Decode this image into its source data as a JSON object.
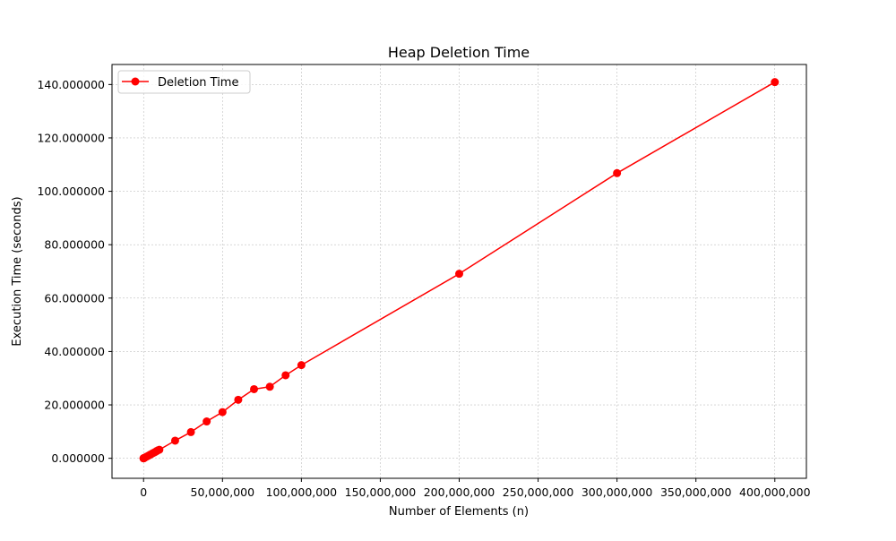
{
  "chart_data": {
    "type": "line",
    "title": "Heap Deletion Time",
    "xlabel": "Number of Elements (n)",
    "ylabel": "Execution Time (seconds)",
    "xlim": [
      -20000000,
      420000000
    ],
    "ylim": [
      -7500000,
      147500000
    ],
    "x_ticks": [
      0,
      50000000,
      100000000,
      150000000,
      200000000,
      250000000,
      300000000,
      350000000,
      400000000
    ],
    "x_tick_labels": [
      "0",
      "50,000,000",
      "100,000,000",
      "150,000,000",
      "200,000,000",
      "250,000,000",
      "300,000,000",
      "350,000,000",
      "400,000,000"
    ],
    "y_ticks": [
      0,
      20000000,
      40000000,
      60000000,
      80000000,
      100000000,
      120000000,
      140000000
    ],
    "y_tick_labels": [
      "0.000000",
      "20.000000",
      "40.000000",
      "60.000000",
      "80.000000",
      "100.000000",
      "120.000000",
      "140.000000"
    ],
    "grid": true,
    "legend_position": "top-left",
    "series": [
      {
        "name": "Deletion Time",
        "color": "#ff0000",
        "marker": "circle",
        "x": [
          100,
          1000,
          10000,
          100000,
          500000,
          1000000,
          2000000,
          3000000,
          4000000,
          5000000,
          6000000,
          7000000,
          8000000,
          9000000,
          10000000,
          20000000,
          30000000,
          40000000,
          50000000,
          60000000,
          70000000,
          80000000,
          90000000,
          100000000,
          200000000,
          300000000,
          400000000
        ],
        "y": [
          0,
          0,
          3000,
          30000,
          150000,
          300000,
          650000,
          950000,
          1300000,
          1600000,
          1950000,
          2250000,
          2600000,
          2950000,
          3200000,
          6600000,
          9800000,
          13800000,
          17300000,
          21900000,
          25900000,
          26800000,
          31100000,
          34900000,
          69100000,
          106800000,
          140900000
        ]
      }
    ]
  }
}
